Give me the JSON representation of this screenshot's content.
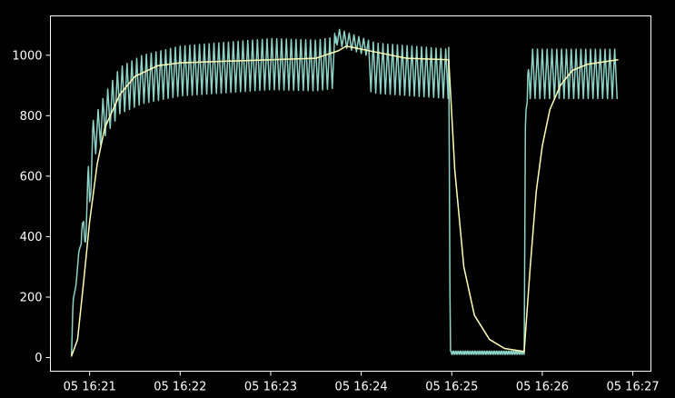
{
  "chart_data": {
    "type": "line",
    "title": "",
    "xlabel": "",
    "ylabel": "",
    "x_tick_labels": [
      "05 16:21",
      "05 16:22",
      "05 16:23",
      "05 16:24",
      "05 16:25",
      "05 16:26",
      "05 16:27"
    ],
    "x_tick_values": [
      "16:21:00",
      "16:22:00",
      "16:23:00",
      "16:24:00",
      "16:25:00",
      "16:26:00",
      "16:27:00"
    ],
    "xlim": [
      "16:20:34",
      "16:27:12"
    ],
    "y_ticks": [
      0,
      200,
      400,
      600,
      800,
      1000
    ],
    "ylim": [
      -45,
      1130
    ],
    "grid": false,
    "colors": {
      "background": "#000000",
      "axes": "#ffffff",
      "series_raw": "#8dd3c7",
      "series_smoothed": "#ffffb3"
    },
    "series": [
      {
        "color": "#8dd3c7",
        "style": "oscillating",
        "points": [
          {
            "x": "16:20:48",
            "y": 10
          },
          {
            "x": "16:20:49",
            "y": 190
          },
          {
            "x": "16:20:51",
            "y": 240
          },
          {
            "x": "16:20:54",
            "y": 420
          },
          {
            "x": "16:20:55",
            "y": 490
          },
          {
            "x": "16:20:57",
            "y": 410
          },
          {
            "x": "16:20:59",
            "y": 650
          },
          {
            "x": "16:21:00",
            "y": 560
          },
          {
            "x": "16:21:02",
            "y": 780
          },
          {
            "x": "16:21:10",
            "y": 870
          },
          {
            "x": "16:21:20",
            "y": 960
          },
          {
            "x": "16:21:35",
            "y": 1000
          },
          {
            "x": "16:22:00",
            "y": 1030
          },
          {
            "x": "16:23:00",
            "y": 1055
          },
          {
            "x": "16:23:30",
            "y": 1050
          },
          {
            "x": "16:23:42",
            "y": 1060
          },
          {
            "x": "16:23:43",
            "y": 1090
          },
          {
            "x": "16:24:10",
            "y": 1040
          },
          {
            "x": "16:24:58",
            "y": 1020
          },
          {
            "x": "16:24:59",
            "y": 15
          },
          {
            "x": "16:25:48",
            "y": 15
          },
          {
            "x": "16:25:49",
            "y": 940
          },
          {
            "x": "16:25:50",
            "y": 880
          },
          {
            "x": "16:25:51",
            "y": 1020
          },
          {
            "x": "16:26:50",
            "y": 1020
          }
        ]
      },
      {
        "color": "#ffffb3",
        "style": "smooth",
        "points": [
          {
            "x": "16:20:48",
            "y": 5
          },
          {
            "x": "16:20:52",
            "y": 60
          },
          {
            "x": "16:20:56",
            "y": 250
          },
          {
            "x": "16:21:00",
            "y": 450
          },
          {
            "x": "16:21:05",
            "y": 640
          },
          {
            "x": "16:21:10",
            "y": 760
          },
          {
            "x": "16:21:20",
            "y": 870
          },
          {
            "x": "16:21:30",
            "y": 930
          },
          {
            "x": "16:21:45",
            "y": 965
          },
          {
            "x": "16:22:00",
            "y": 975
          },
          {
            "x": "16:22:30",
            "y": 980
          },
          {
            "x": "16:23:00",
            "y": 985
          },
          {
            "x": "16:23:30",
            "y": 990
          },
          {
            "x": "16:23:45",
            "y": 1015
          },
          {
            "x": "16:23:50",
            "y": 1030
          },
          {
            "x": "16:24:10",
            "y": 1010
          },
          {
            "x": "16:24:30",
            "y": 990
          },
          {
            "x": "16:24:58",
            "y": 985
          },
          {
            "x": "16:25:02",
            "y": 620
          },
          {
            "x": "16:25:08",
            "y": 300
          },
          {
            "x": "16:25:15",
            "y": 140
          },
          {
            "x": "16:25:25",
            "y": 60
          },
          {
            "x": "16:25:35",
            "y": 30
          },
          {
            "x": "16:25:48",
            "y": 20
          },
          {
            "x": "16:25:52",
            "y": 300
          },
          {
            "x": "16:25:56",
            "y": 550
          },
          {
            "x": "16:26:00",
            "y": 700
          },
          {
            "x": "16:26:05",
            "y": 820
          },
          {
            "x": "16:26:12",
            "y": 900
          },
          {
            "x": "16:26:20",
            "y": 950
          },
          {
            "x": "16:26:30",
            "y": 970
          },
          {
            "x": "16:26:50",
            "y": 985
          }
        ]
      }
    ]
  }
}
